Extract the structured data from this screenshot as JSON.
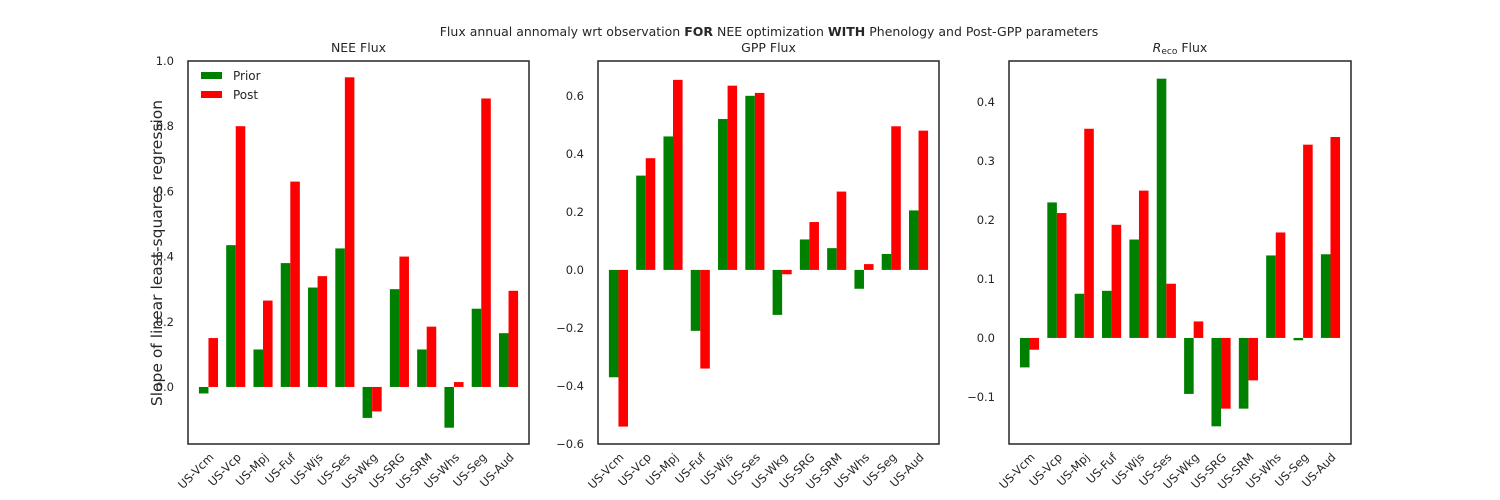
{
  "figure": {
    "suptitle_parts": [
      {
        "text": "Flux annual annomaly wrt observation ",
        "bold": false
      },
      {
        "text": "FOR",
        "bold": true
      },
      {
        "text": " NEE optimization ",
        "bold": false
      },
      {
        "text": "WITH",
        "bold": true
      },
      {
        "text": " Phenology and Post-GPP parameters",
        "bold": false
      }
    ],
    "ylabel": "Slope of linear least-squares regression"
  },
  "chart_data": [
    {
      "type": "bar",
      "title_parts": [
        {
          "text": "NEE Flux",
          "sub": false
        }
      ],
      "categories": [
        "US-Vcm",
        "US-Vcp",
        "US-Mpj",
        "US-Fuf",
        "US-Wjs",
        "US-Ses",
        "US-Wkg",
        "US-SRG",
        "US-SRM",
        "US-Whs",
        "US-Seg",
        "US-Aud"
      ],
      "series": [
        {
          "name": "Prior",
          "color": "#008000",
          "values": [
            -0.02,
            0.435,
            0.115,
            0.38,
            0.305,
            0.425,
            -0.095,
            0.3,
            0.115,
            -0.125,
            0.24,
            0.165
          ]
        },
        {
          "name": "Post",
          "color": "#ff0000",
          "values": [
            0.15,
            0.8,
            0.265,
            0.63,
            0.34,
            0.95,
            -0.075,
            0.4,
            0.185,
            0.015,
            0.885,
            0.295
          ]
        }
      ],
      "ylim": [
        -0.175,
        1.0
      ],
      "yticks": [
        0.0,
        0.2,
        0.4,
        0.6,
        0.8,
        1.0
      ],
      "ytick_labels": [
        "0.0",
        "0.2",
        "0.4",
        "0.6",
        "0.8",
        "1.0"
      ],
      "legend": {
        "placement": "upper-left",
        "entries": [
          "Prior",
          "Post"
        ]
      }
    },
    {
      "type": "bar",
      "title_parts": [
        {
          "text": "GPP Flux",
          "sub": false
        }
      ],
      "categories": [
        "US-Vcm",
        "US-Vcp",
        "US-Mpj",
        "US-Fuf",
        "US-Wjs",
        "US-Ses",
        "US-Wkg",
        "US-SRG",
        "US-SRM",
        "US-Whs",
        "US-Seg",
        "US-Aud"
      ],
      "series": [
        {
          "name": "Prior",
          "color": "#008000",
          "values": [
            -0.37,
            0.325,
            0.46,
            -0.21,
            0.52,
            0.6,
            -0.155,
            0.105,
            0.075,
            -0.065,
            0.055,
            0.205
          ]
        },
        {
          "name": "Post",
          "color": "#ff0000",
          "values": [
            -0.54,
            0.385,
            0.655,
            -0.34,
            0.635,
            0.61,
            -0.015,
            0.165,
            0.27,
            0.02,
            0.495,
            0.48
          ]
        }
      ],
      "ylim": [
        -0.6,
        0.72
      ],
      "yticks": [
        -0.6,
        -0.4,
        -0.2,
        0.0,
        0.2,
        0.4,
        0.6
      ],
      "ytick_labels": [
        "−0.6",
        "−0.4",
        "−0.2",
        "0.0",
        "0.2",
        "0.4",
        "0.6"
      ]
    },
    {
      "type": "bar",
      "title_parts": [
        {
          "text": "R",
          "sub": false
        },
        {
          "text": "eco",
          "sub": true
        },
        {
          "text": " Flux",
          "sub": false
        }
      ],
      "categories": [
        "US-Vcm",
        "US-Vcp",
        "US-Mpj",
        "US-Fuf",
        "US-Wjs",
        "US-Ses",
        "US-Wkg",
        "US-SRG",
        "US-SRM",
        "US-Whs",
        "US-Seg",
        "US-Aud"
      ],
      "series": [
        {
          "name": "Prior",
          "color": "#008000",
          "values": [
            -0.05,
            0.23,
            0.075,
            0.08,
            0.167,
            0.44,
            -0.095,
            -0.15,
            -0.12,
            0.14,
            -0.004,
            0.142
          ]
        },
        {
          "name": "Post",
          "color": "#ff0000",
          "values": [
            -0.02,
            0.212,
            0.355,
            0.192,
            0.25,
            0.092,
            0.028,
            -0.12,
            -0.072,
            0.179,
            0.328,
            0.341
          ]
        }
      ],
      "ylim": [
        -0.18,
        0.47
      ],
      "yticks": [
        -0.1,
        0.0,
        0.1,
        0.2,
        0.3,
        0.4
      ],
      "ytick_labels": [
        "−0.1",
        "0.0",
        "0.1",
        "0.2",
        "0.3",
        "0.4"
      ]
    }
  ]
}
